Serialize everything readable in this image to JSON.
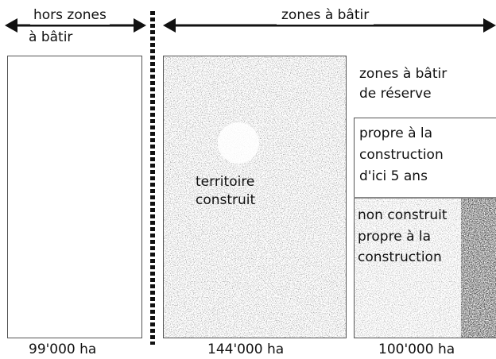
{
  "header": {
    "left_label_line1": "hors zones",
    "left_label_line2": "à bâtir",
    "right_label": "zones à bâtir"
  },
  "columns": {
    "left": {
      "area": "99'000 ha"
    },
    "middle": {
      "label_line1": "territoire",
      "label_line2": "construit",
      "area": "144'000 ha"
    },
    "right": {
      "reserve_line1": "zones à bâtir",
      "reserve_line2": "de réserve",
      "five_years_line1": "propre à la",
      "five_years_line2": "construction",
      "five_years_line3": "d'ici 5 ans",
      "unbuilt_line1": "non construit",
      "unbuilt_line2": "propre à la",
      "unbuilt_line3": "construction",
      "area": "100'000 ha"
    }
  },
  "colors": {
    "ink": "#111111",
    "border": "#555555",
    "speckle": "#777777"
  }
}
